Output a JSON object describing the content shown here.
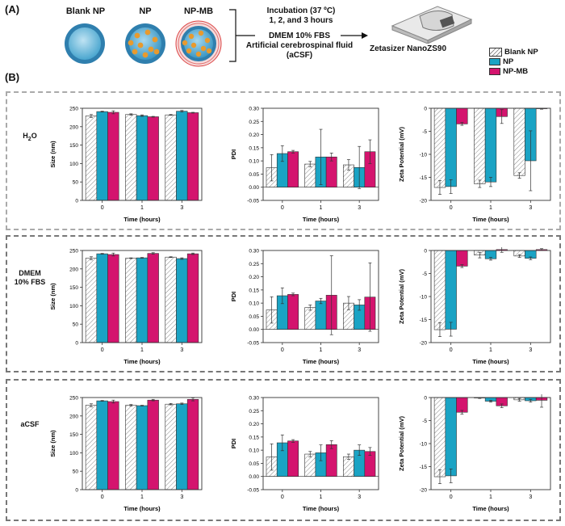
{
  "panel_a": {
    "label": "(A)",
    "np_types": [
      "Blank NP",
      "NP",
      "NP-MB"
    ],
    "incubation_lines": [
      "Incubation (37 ºC)",
      "1, 2, and 3 hours"
    ],
    "media_lines": [
      "DMEM 10% FBS",
      "Artificial cerebrospinal fluid",
      "(aCSF)"
    ],
    "instrument": "Zetasizer NanoZS90"
  },
  "panel_b": {
    "label": "(B)"
  },
  "conditions": [
    "H2O",
    "DMEM 10% FBS",
    "aCSF"
  ],
  "legend": [
    {
      "name": "Blank NP",
      "pattern": "hatch",
      "color": "#ffffff"
    },
    {
      "name": "NP",
      "pattern": "solid",
      "color": "#1aa3c4"
    },
    {
      "name": "NP-MB",
      "pattern": "solid",
      "color": "#d4146e"
    }
  ],
  "chart_data": [
    {
      "type": "bar",
      "condition": "H2O",
      "metric": "size",
      "xlabel": "Time (hours)",
      "ylabel": "Size (nm)",
      "categories": [
        "0",
        "1",
        "3"
      ],
      "ylim": [
        0,
        250
      ],
      "yticks": [
        0,
        50,
        100,
        150,
        200,
        250
      ],
      "series": [
        {
          "name": "Blank NP",
          "values": [
            229,
            233,
            232
          ],
          "errors": [
            4,
            2,
            1
          ]
        },
        {
          "name": "NP",
          "values": [
            241,
            230,
            242
          ],
          "errors": [
            1,
            2,
            2
          ]
        },
        {
          "name": "NP-MB",
          "values": [
            239,
            227,
            238
          ],
          "errors": [
            4,
            1,
            1
          ]
        }
      ]
    },
    {
      "type": "bar",
      "condition": "H2O",
      "metric": "pdi",
      "xlabel": "Time (hours)",
      "ylabel": "PDI",
      "categories": [
        "0",
        "1",
        "3"
      ],
      "ylim": [
        -0.05,
        0.3
      ],
      "yticks": [
        -0.05,
        0,
        0.05,
        0.1,
        0.15,
        0.2,
        0.25,
        0.3
      ],
      "series": [
        {
          "name": "Blank NP",
          "values": [
            0.074,
            0.088,
            0.085
          ],
          "errors": [
            0.05,
            0.01,
            0.02
          ]
        },
        {
          "name": "NP",
          "values": [
            0.128,
            0.115,
            0.075
          ],
          "errors": [
            0.03,
            0.105,
            0.08
          ]
        },
        {
          "name": "NP-MB",
          "values": [
            0.135,
            0.115,
            0.135
          ],
          "errors": [
            0.005,
            0.015,
            0.045
          ]
        }
      ]
    },
    {
      "type": "bar",
      "condition": "H2O",
      "metric": "zeta",
      "xlabel": "Time (hours)",
      "ylabel": "Zeta Potential (mV)",
      "categories": [
        "0",
        "1",
        "3"
      ],
      "ylim": [
        -20,
        0
      ],
      "yticks": [
        -20,
        -15,
        -10,
        -5,
        0
      ],
      "series": [
        {
          "name": "Blank NP",
          "values": [
            -17.2,
            -16.4,
            -14.6
          ],
          "errors": [
            1.5,
            0.8,
            0.6
          ]
        },
        {
          "name": "NP",
          "values": [
            -17,
            -16,
            -11.4
          ],
          "errors": [
            1.5,
            1,
            6.5
          ]
        },
        {
          "name": "NP-MB",
          "values": [
            -3.4,
            -1.8,
            -0.1
          ],
          "errors": [
            0.3,
            1.5,
            0.1
          ]
        }
      ]
    },
    {
      "type": "bar",
      "condition": "DMEM 10% FBS",
      "metric": "size",
      "xlabel": "Time (hours)",
      "ylabel": "Size (nm)",
      "categories": [
        "0",
        "1",
        "3"
      ],
      "ylim": [
        0,
        250
      ],
      "yticks": [
        0,
        50,
        100,
        150,
        200,
        250
      ],
      "series": [
        {
          "name": "Blank NP",
          "values": [
            229,
            229,
            232
          ],
          "errors": [
            4,
            1,
            1
          ]
        },
        {
          "name": "NP",
          "values": [
            241,
            230,
            228
          ],
          "errors": [
            1,
            1,
            2
          ]
        },
        {
          "name": "NP-MB",
          "values": [
            239,
            242,
            241
          ],
          "errors": [
            4,
            2,
            2
          ]
        }
      ]
    },
    {
      "type": "bar",
      "condition": "DMEM 10% FBS",
      "metric": "pdi",
      "xlabel": "Time (hours)",
      "ylabel": "PDI",
      "categories": [
        "0",
        "1",
        "3"
      ],
      "ylim": [
        -0.05,
        0.3
      ],
      "yticks": [
        -0.05,
        0,
        0.05,
        0.1,
        0.15,
        0.2,
        0.25,
        0.3
      ],
      "series": [
        {
          "name": "Blank NP",
          "values": [
            0.074,
            0.083,
            0.1
          ],
          "errors": [
            0.05,
            0.01,
            0.025
          ]
        },
        {
          "name": "NP",
          "values": [
            0.128,
            0.108,
            0.093
          ],
          "errors": [
            0.03,
            0.01,
            0.02
          ]
        },
        {
          "name": "NP-MB",
          "values": [
            0.133,
            0.13,
            0.123
          ],
          "errors": [
            0.005,
            0.15,
            0.13
          ]
        }
      ]
    },
    {
      "type": "bar",
      "condition": "DMEM 10% FBS",
      "metric": "zeta",
      "xlabel": "Time (hours)",
      "ylabel": "Zeta Potential (mV)",
      "categories": [
        "0",
        "1",
        "3"
      ],
      "ylim": [
        -20,
        0
      ],
      "yticks": [
        -20,
        -15,
        -10,
        -5,
        0
      ],
      "series": [
        {
          "name": "Blank NP",
          "values": [
            -17.2,
            -1,
            -1.2
          ],
          "errors": [
            1.5,
            0.6,
            0.3
          ]
        },
        {
          "name": "NP",
          "values": [
            -17.1,
            -1.8,
            -1.7
          ],
          "errors": [
            1.5,
            0.3,
            0.3
          ]
        },
        {
          "name": "NP-MB",
          "values": [
            -3.4,
            0.2,
            0.2
          ],
          "errors": [
            0.3,
            0.6,
            0.2
          ]
        }
      ]
    },
    {
      "type": "bar",
      "condition": "aCSF",
      "metric": "size",
      "xlabel": "Time (hours)",
      "ylabel": "Size (nm)",
      "categories": [
        "0",
        "1",
        "3"
      ],
      "ylim": [
        0,
        250
      ],
      "yticks": [
        0,
        50,
        100,
        150,
        200,
        250
      ],
      "series": [
        {
          "name": "Blank NP",
          "values": [
            229,
            229,
            232
          ],
          "errors": [
            4,
            2,
            2
          ]
        },
        {
          "name": "NP",
          "values": [
            241,
            228,
            233
          ],
          "errors": [
            1,
            1,
            2
          ]
        },
        {
          "name": "NP-MB",
          "values": [
            239,
            243,
            245
          ],
          "errors": [
            4,
            2,
            4
          ]
        }
      ]
    },
    {
      "type": "bar",
      "condition": "aCSF",
      "metric": "pdi",
      "xlabel": "Time (hours)",
      "ylabel": "PDI",
      "categories": [
        "0",
        "1",
        "3"
      ],
      "ylim": [
        -0.05,
        0.3
      ],
      "yticks": [
        -0.05,
        0,
        0.05,
        0.1,
        0.15,
        0.2,
        0.25,
        0.3
      ],
      "series": [
        {
          "name": "Blank NP",
          "values": [
            0.074,
            0.085,
            0.075
          ],
          "errors": [
            0.05,
            0.01,
            0.01
          ]
        },
        {
          "name": "NP",
          "values": [
            0.128,
            0.09,
            0.1
          ],
          "errors": [
            0.03,
            0.03,
            0.02
          ]
        },
        {
          "name": "NP-MB",
          "values": [
            0.135,
            0.121,
            0.095
          ],
          "errors": [
            0.005,
            0.015,
            0.015
          ]
        }
      ]
    },
    {
      "type": "bar",
      "condition": "aCSF",
      "metric": "zeta",
      "xlabel": "Time (hours)",
      "ylabel": "Zeta Potential (mV)",
      "categories": [
        "0",
        "1",
        "3"
      ],
      "ylim": [
        -20,
        0
      ],
      "yticks": [
        -20,
        -15,
        -10,
        -5,
        0
      ],
      "series": [
        {
          "name": "Blank NP",
          "values": [
            -17.2,
            -0.1,
            -0.5
          ],
          "errors": [
            1.5,
            0.1,
            0.3
          ]
        },
        {
          "name": "NP",
          "values": [
            -17,
            -0.8,
            -0.7
          ],
          "errors": [
            1.5,
            0.2,
            0.3
          ]
        },
        {
          "name": "NP-MB",
          "values": [
            -3.2,
            -1.8,
            -0.6
          ],
          "errors": [
            0.4,
            0.4,
            1.5
          ]
        }
      ]
    }
  ]
}
